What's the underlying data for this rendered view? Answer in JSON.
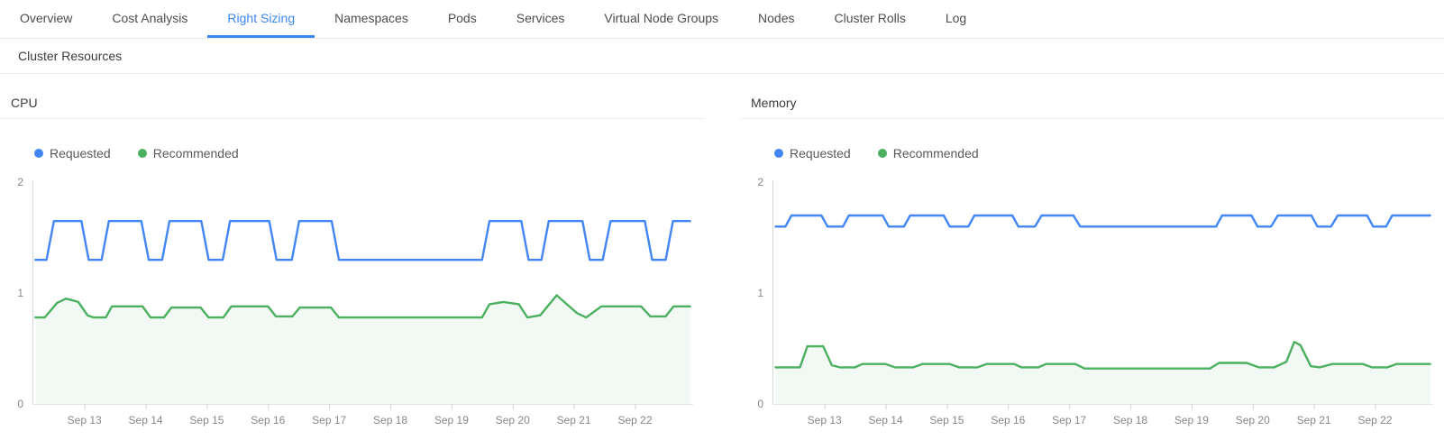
{
  "tabs": {
    "accent_color": "#3d87f0",
    "items": [
      {
        "label": "Overview",
        "active": false
      },
      {
        "label": "Cost Analysis",
        "active": false
      },
      {
        "label": "Right Sizing",
        "active": true
      },
      {
        "label": "Namespaces",
        "active": false
      },
      {
        "label": "Pods",
        "active": false
      },
      {
        "label": "Services",
        "active": false
      },
      {
        "label": "Virtual Node Groups",
        "active": false
      },
      {
        "label": "Nodes",
        "active": false
      },
      {
        "label": "Cluster Rolls",
        "active": false
      },
      {
        "label": "Log",
        "active": false
      }
    ]
  },
  "section": {
    "title": "Cluster Resources"
  },
  "chart_data": [
    {
      "type": "line",
      "title": "CPU",
      "xlabel": "",
      "ylabel": "",
      "xlim": [
        12.15,
        22.95
      ],
      "ylim": [
        0,
        2.05
      ],
      "y_ticks": [
        0,
        1,
        2
      ],
      "x_ticks": [
        13,
        14,
        15,
        16,
        17,
        18,
        19,
        20,
        21,
        22
      ],
      "x_tick_labels": [
        "Sep 13",
        "Sep 14",
        "Sep 15",
        "Sep 16",
        "Sep 17",
        "Sep 18",
        "Sep 19",
        "Sep 20",
        "Sep 21",
        "Sep 22"
      ],
      "grid": false,
      "legend_position": "top-left",
      "series": [
        {
          "name": "Requested",
          "color": "#4285f4",
          "fill": false,
          "points": [
            [
              12.2,
              1.3
            ],
            [
              12.38,
              1.3
            ],
            [
              12.5,
              1.65
            ],
            [
              12.95,
              1.65
            ],
            [
              13.07,
              1.3
            ],
            [
              13.28,
              1.3
            ],
            [
              13.4,
              1.65
            ],
            [
              13.93,
              1.65
            ],
            [
              14.05,
              1.3
            ],
            [
              14.27,
              1.3
            ],
            [
              14.39,
              1.65
            ],
            [
              14.91,
              1.65
            ],
            [
              15.03,
              1.3
            ],
            [
              15.26,
              1.3
            ],
            [
              15.38,
              1.65
            ],
            [
              16.02,
              1.65
            ],
            [
              16.14,
              1.3
            ],
            [
              16.39,
              1.3
            ],
            [
              16.51,
              1.65
            ],
            [
              17.04,
              1.65
            ],
            [
              17.16,
              1.3
            ],
            [
              19.5,
              1.3
            ],
            [
              19.62,
              1.65
            ],
            [
              20.14,
              1.65
            ],
            [
              20.26,
              1.3
            ],
            [
              20.47,
              1.3
            ],
            [
              20.59,
              1.65
            ],
            [
              21.14,
              1.65
            ],
            [
              21.26,
              1.3
            ],
            [
              21.47,
              1.3
            ],
            [
              21.6,
              1.65
            ],
            [
              22.16,
              1.65
            ],
            [
              22.28,
              1.3
            ],
            [
              22.5,
              1.3
            ],
            [
              22.62,
              1.65
            ],
            [
              22.9,
              1.65
            ]
          ]
        },
        {
          "name": "Recommended",
          "color": "#4bb05f",
          "fill": true,
          "fill_opacity": 0.07,
          "points": [
            [
              12.2,
              0.78
            ],
            [
              12.35,
              0.78
            ],
            [
              12.55,
              0.91
            ],
            [
              12.7,
              0.95
            ],
            [
              12.9,
              0.92
            ],
            [
              13.05,
              0.8
            ],
            [
              13.15,
              0.78
            ],
            [
              13.35,
              0.78
            ],
            [
              13.45,
              0.88
            ],
            [
              13.95,
              0.88
            ],
            [
              14.08,
              0.78
            ],
            [
              14.3,
              0.78
            ],
            [
              14.42,
              0.87
            ],
            [
              14.9,
              0.87
            ],
            [
              15.03,
              0.78
            ],
            [
              15.27,
              0.78
            ],
            [
              15.4,
              0.88
            ],
            [
              16.0,
              0.88
            ],
            [
              16.13,
              0.79
            ],
            [
              16.4,
              0.79
            ],
            [
              16.52,
              0.87
            ],
            [
              17.03,
              0.87
            ],
            [
              17.16,
              0.78
            ],
            [
              19.5,
              0.78
            ],
            [
              19.62,
              0.9
            ],
            [
              19.85,
              0.92
            ],
            [
              20.1,
              0.9
            ],
            [
              20.24,
              0.78
            ],
            [
              20.45,
              0.8
            ],
            [
              20.72,
              0.98
            ],
            [
              21.05,
              0.82
            ],
            [
              21.2,
              0.78
            ],
            [
              21.45,
              0.88
            ],
            [
              22.1,
              0.88
            ],
            [
              22.25,
              0.79
            ],
            [
              22.5,
              0.79
            ],
            [
              22.63,
              0.88
            ],
            [
              22.9,
              0.88
            ]
          ]
        }
      ]
    },
    {
      "type": "line",
      "title": "Memory",
      "xlabel": "",
      "ylabel": "",
      "xlim": [
        12.15,
        22.95
      ],
      "ylim": [
        0,
        2.05
      ],
      "y_ticks": [
        0,
        1,
        2
      ],
      "x_ticks": [
        13,
        14,
        15,
        16,
        17,
        18,
        19,
        20,
        21,
        22
      ],
      "x_tick_labels": [
        "Sep 13",
        "Sep 14",
        "Sep 15",
        "Sep 16",
        "Sep 17",
        "Sep 18",
        "Sep 19",
        "Sep 20",
        "Sep 21",
        "Sep 22"
      ],
      "grid": false,
      "legend_position": "top-left",
      "series": [
        {
          "name": "Requested",
          "color": "#4285f4",
          "fill": false,
          "points": [
            [
              12.2,
              1.6
            ],
            [
              12.36,
              1.6
            ],
            [
              12.46,
              1.7
            ],
            [
              12.95,
              1.7
            ],
            [
              13.05,
              1.6
            ],
            [
              13.3,
              1.6
            ],
            [
              13.4,
              1.7
            ],
            [
              13.95,
              1.7
            ],
            [
              14.05,
              1.6
            ],
            [
              14.3,
              1.6
            ],
            [
              14.4,
              1.7
            ],
            [
              14.95,
              1.7
            ],
            [
              15.05,
              1.6
            ],
            [
              15.35,
              1.6
            ],
            [
              15.45,
              1.7
            ],
            [
              16.07,
              1.7
            ],
            [
              16.17,
              1.6
            ],
            [
              16.44,
              1.6
            ],
            [
              16.55,
              1.7
            ],
            [
              17.07,
              1.7
            ],
            [
              17.18,
              1.6
            ],
            [
              19.4,
              1.6
            ],
            [
              19.5,
              1.7
            ],
            [
              19.98,
              1.7
            ],
            [
              20.08,
              1.6
            ],
            [
              20.3,
              1.6
            ],
            [
              20.41,
              1.7
            ],
            [
              20.96,
              1.7
            ],
            [
              21.06,
              1.6
            ],
            [
              21.28,
              1.6
            ],
            [
              21.39,
              1.7
            ],
            [
              21.87,
              1.7
            ],
            [
              21.97,
              1.6
            ],
            [
              22.18,
              1.6
            ],
            [
              22.28,
              1.7
            ],
            [
              22.9,
              1.7
            ]
          ]
        },
        {
          "name": "Recommended",
          "color": "#4bb05f",
          "fill": true,
          "fill_opacity": 0.07,
          "points": [
            [
              12.2,
              0.33
            ],
            [
              12.6,
              0.33
            ],
            [
              12.72,
              0.52
            ],
            [
              12.98,
              0.52
            ],
            [
              13.12,
              0.35
            ],
            [
              13.25,
              0.33
            ],
            [
              13.5,
              0.33
            ],
            [
              13.62,
              0.36
            ],
            [
              14.0,
              0.36
            ],
            [
              14.15,
              0.33
            ],
            [
              14.45,
              0.33
            ],
            [
              14.6,
              0.36
            ],
            [
              15.05,
              0.36
            ],
            [
              15.2,
              0.33
            ],
            [
              15.5,
              0.33
            ],
            [
              15.65,
              0.36
            ],
            [
              16.1,
              0.36
            ],
            [
              16.22,
              0.33
            ],
            [
              16.5,
              0.33
            ],
            [
              16.62,
              0.36
            ],
            [
              17.1,
              0.36
            ],
            [
              17.25,
              0.32
            ],
            [
              19.3,
              0.32
            ],
            [
              19.45,
              0.37
            ],
            [
              19.9,
              0.37
            ],
            [
              20.1,
              0.33
            ],
            [
              20.35,
              0.33
            ],
            [
              20.55,
              0.38
            ],
            [
              20.68,
              0.56
            ],
            [
              20.78,
              0.53
            ],
            [
              20.95,
              0.34
            ],
            [
              21.1,
              0.33
            ],
            [
              21.3,
              0.36
            ],
            [
              21.8,
              0.36
            ],
            [
              21.95,
              0.33
            ],
            [
              22.2,
              0.33
            ],
            [
              22.35,
              0.36
            ],
            [
              22.9,
              0.36
            ]
          ]
        }
      ]
    }
  ]
}
